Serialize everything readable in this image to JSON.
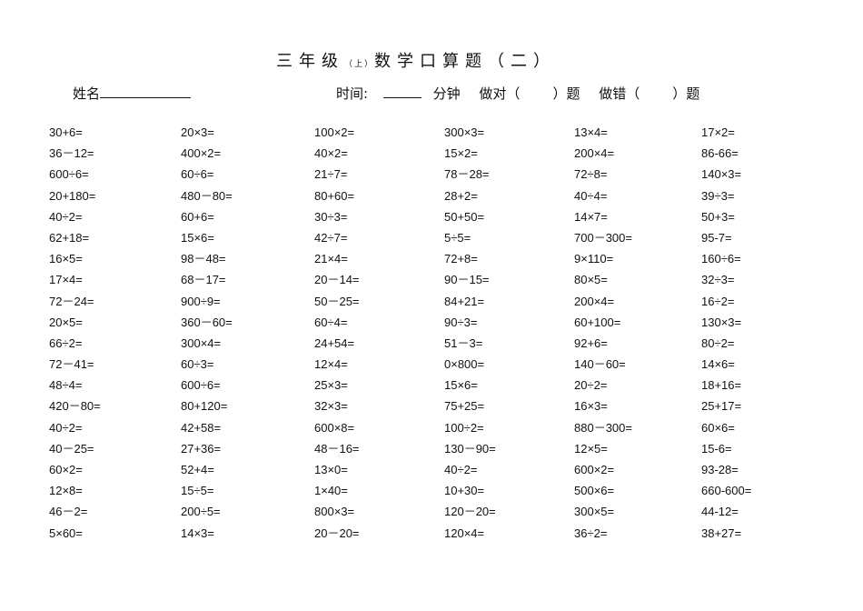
{
  "title": {
    "grade": "三年级",
    "term": "（上）",
    "subject": "数学口算题（二）"
  },
  "header": {
    "name_label": "姓名",
    "time_label": "时间:",
    "minutes_label": "分钟",
    "correct_label": "做对（",
    "wrong_label": "做错（",
    "question_suffix": "）题"
  },
  "columns": [
    [
      "30+6=",
      "36－12=",
      "600÷6=",
      "20+180=",
      "40÷2=",
      "62+18=",
      "16×5=",
      "17×4=",
      "72－24=",
      "20×5=",
      "66÷2=",
      "72－41=",
      "48÷4=",
      "420－80=",
      "40÷2=",
      "40－25=",
      "60×2=",
      "12×8=",
      "46－2=",
      "5×60="
    ],
    [
      "20×3=",
      "400×2=",
      "60÷6=",
      "480－80=",
      "60+6=",
      "15×6=",
      "98－48=",
      "68－17=",
      "900÷9=",
      "360－60=",
      "300×4=",
      "60÷3=",
      "600÷6=",
      "80+120=",
      "42+58=",
      "27+36=",
      "52+4=",
      "15÷5=",
      "200÷5=",
      "14×3="
    ],
    [
      "100×2=",
      "40×2=",
      "21÷7=",
      "80+60=",
      "30÷3=",
      "42÷7=",
      "21×4=",
      "20－14=",
      "50－25=",
      "60÷4=",
      "24+54=",
      "12×4=",
      "25×3=",
      "32×3=",
      "600×8=",
      "48－16=",
      "13×0=",
      "1×40=",
      "800×3=",
      "20－20="
    ],
    [
      "300×3=",
      "15×2=",
      "78－28=",
      "28+2=",
      "50+50=",
      "5÷5=",
      "72+8=",
      "90－15=",
      "84+21=",
      "90÷3=",
      "51－3=",
      "0×800=",
      "15×6=",
      "75+25=",
      "100÷2=",
      "130－90=",
      "40÷2=",
      "10+30=",
      "120－20=",
      "120×4="
    ],
    [
      "13×4=",
      "200×4=",
      "72÷8=",
      "40÷4=",
      "14×7=",
      "700－300=",
      "9×110=",
      "80×5=",
      "200×4=",
      "60+100=",
      "92+6=",
      "140－60=",
      "20÷2=",
      "16×3=",
      "880－300=",
      "12×5=",
      "600×2=",
      "500×6=",
      "300×5=",
      "36÷2="
    ],
    [
      "17×2=",
      "86-66=",
      "140×3=",
      "39÷3=",
      "50+3=",
      "95-7=",
      "160÷6=",
      "32÷3=",
      "16÷2=",
      "130×3=",
      "80÷2=",
      "14×6=",
      "18+16=",
      "25+17=",
      "60×6=",
      "15-6=",
      "93-28=",
      "660-600=",
      "44-12=",
      "38+27="
    ]
  ]
}
